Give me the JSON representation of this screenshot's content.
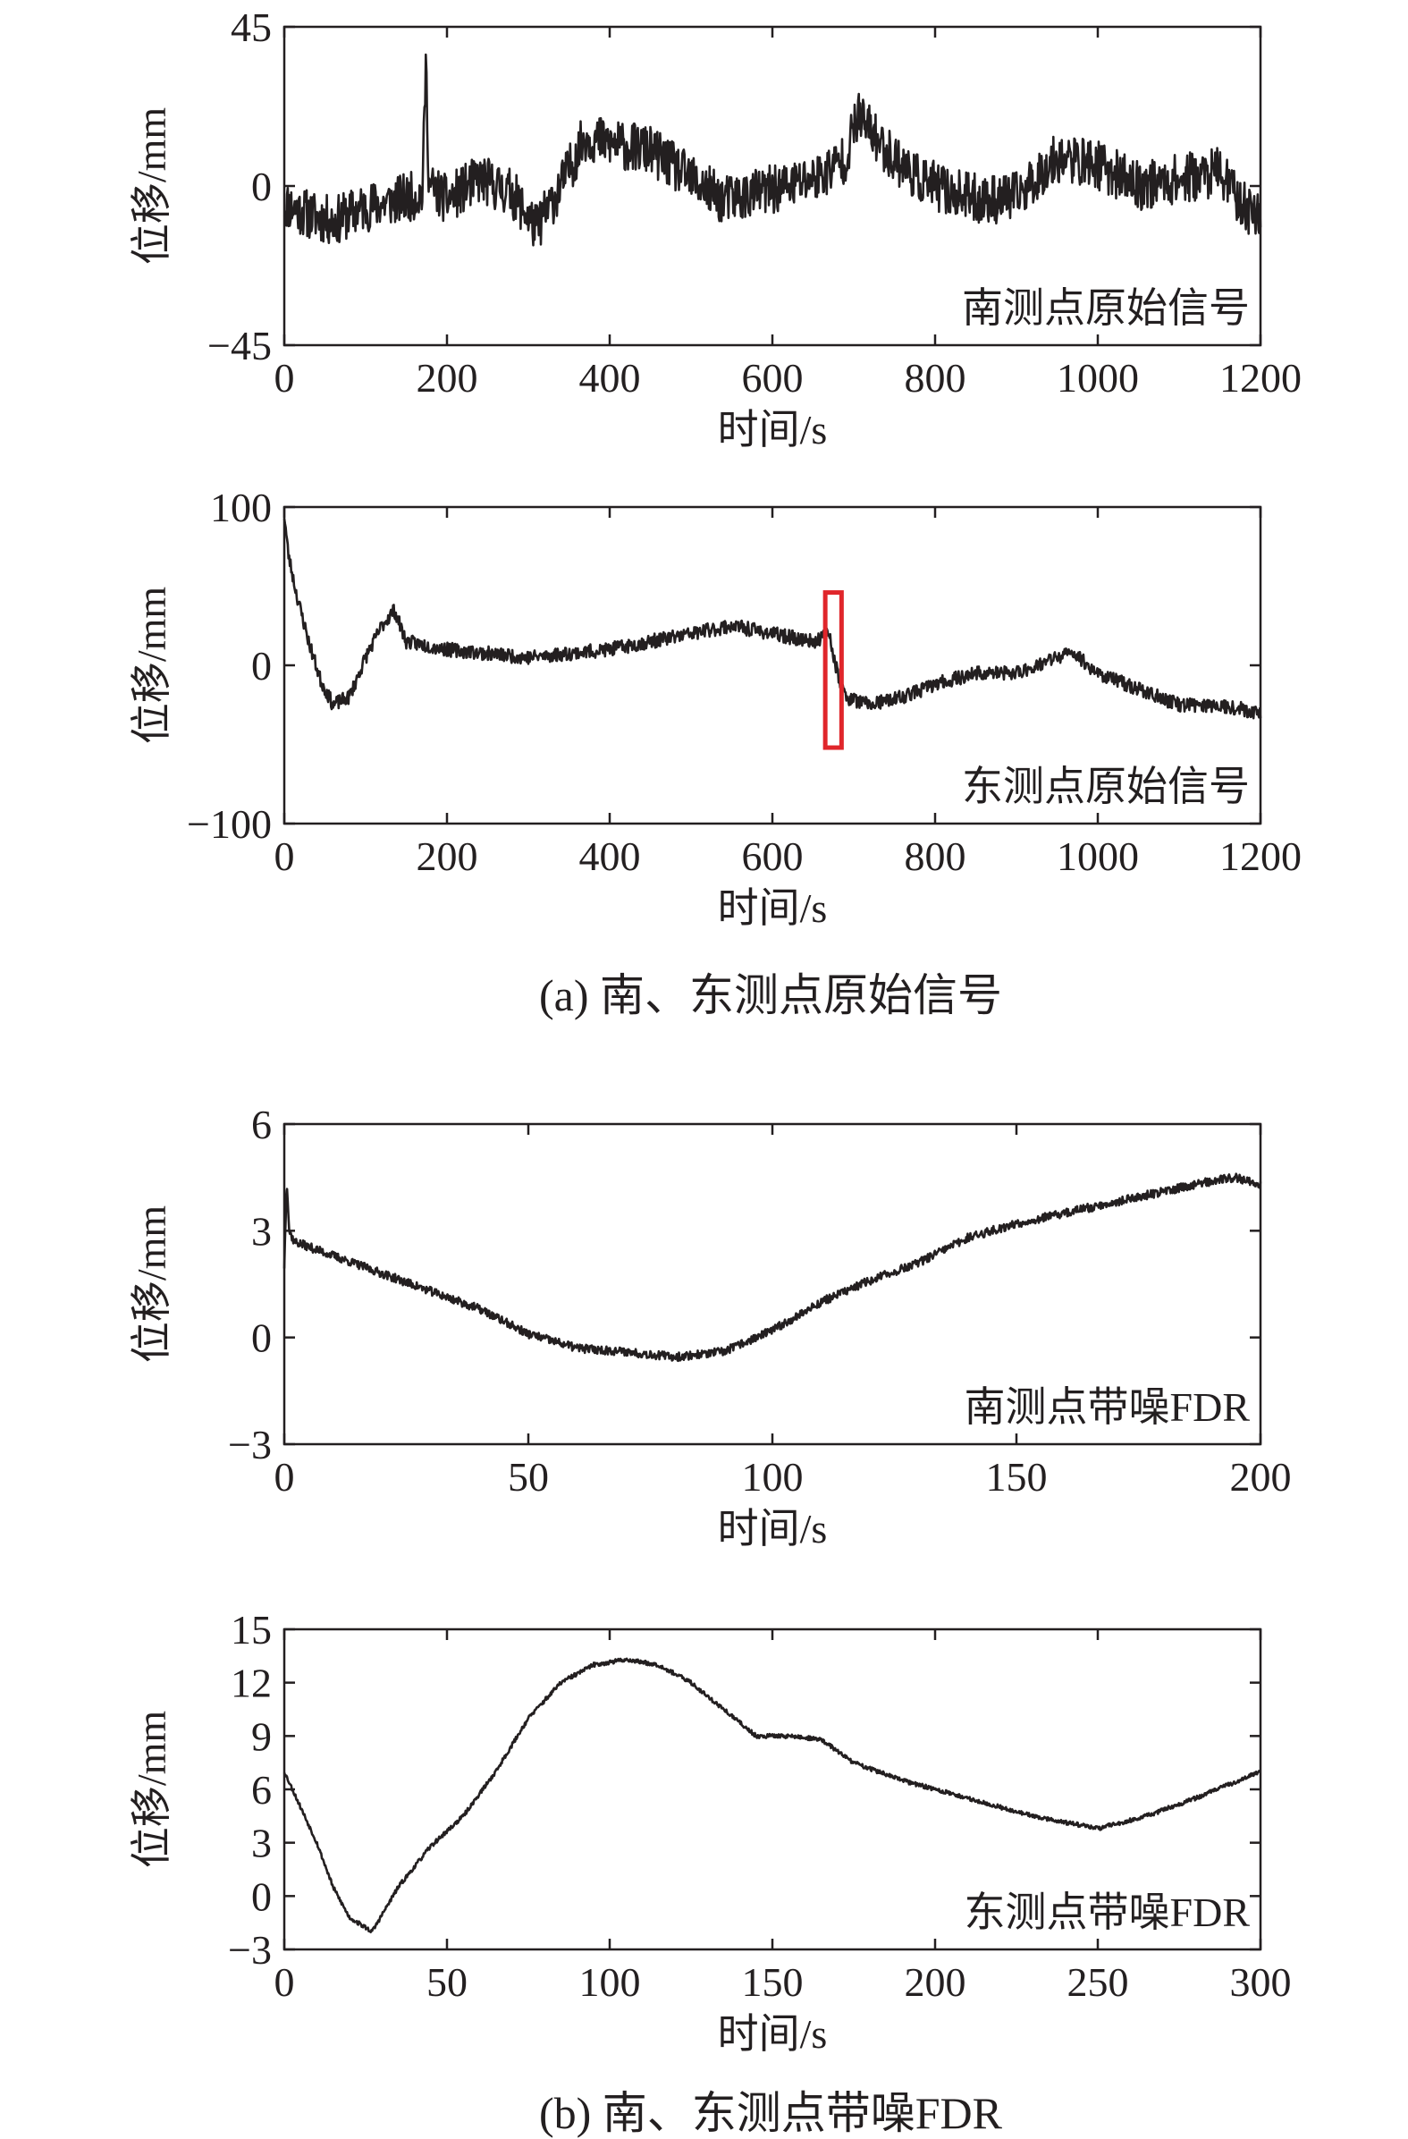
{
  "chart_data": [
    {
      "type": "line",
      "panel": "a-top",
      "title": "",
      "annotation": "南测点原始信号",
      "xlabel": "时间/s",
      "ylabel": "位移/mm",
      "xlim": [
        0,
        1200
      ],
      "ylim": [
        -45,
        45
      ],
      "xticks": [
        0,
        200,
        400,
        600,
        800,
        1000,
        1200
      ],
      "xtick_labels": [
        "0",
        "200",
        "400",
        "600",
        "800",
        "1000",
        "1200"
      ],
      "yticks": [
        -45,
        0,
        45
      ],
      "ytick_labels": [
        "−45",
        "0",
        "45"
      ],
      "noise": 7,
      "seed": 11,
      "series": [
        {
          "name": "南测点原始信号",
          "x": [
            0,
            30,
            60,
            100,
            140,
            170,
            174,
            178,
            200,
            240,
            280,
            310,
            340,
            370,
            400,
            450,
            500,
            540,
            580,
            620,
            660,
            690,
            705,
            740,
            780,
            820,
            860,
            900,
            950,
            1000,
            1050,
            1100,
            1150,
            1180,
            1200
          ],
          "y": [
            -5,
            -8,
            -10,
            -6,
            -4,
            -2,
            35,
            0,
            -4,
            2,
            -2,
            -12,
            0,
            14,
            12,
            10,
            2,
            -4,
            -2,
            0,
            3,
            8,
            20,
            10,
            2,
            -2,
            -4,
            -3,
            8,
            6,
            0,
            2,
            4,
            -6,
            -8
          ]
        }
      ]
    },
    {
      "type": "line",
      "panel": "a-bottom",
      "title": "",
      "annotation": "东测点原始信号",
      "xlabel": "时间/s",
      "ylabel": "位移/mm",
      "xlim": [
        0,
        1200
      ],
      "ylim": [
        -100,
        100
      ],
      "xticks": [
        0,
        200,
        400,
        600,
        800,
        1000,
        1200
      ],
      "xtick_labels": [
        "0",
        "200",
        "400",
        "600",
        "800",
        "1000",
        "1200"
      ],
      "yticks": [
        -100,
        0,
        100
      ],
      "ytick_labels": [
        "−100",
        "0",
        "100"
      ],
      "noise": 4.5,
      "seed": 23,
      "highlight": {
        "x0": 665,
        "x1": 685,
        "y0": -52,
        "y1": 46,
        "color": "#e0262b"
      },
      "series": [
        {
          "name": "东测点原始信号",
          "x": [
            0,
            5,
            15,
            30,
            45,
            60,
            80,
            100,
            120,
            135,
            150,
            200,
            300,
            400,
            450,
            500,
            550,
            600,
            650,
            670,
            680,
            690,
            720,
            760,
            800,
            850,
            900,
            950,
            970,
            1000,
            1050,
            1100,
            1150,
            1200
          ],
          "y": [
            95,
            70,
            45,
            15,
            -10,
            -25,
            -20,
            5,
            25,
            35,
            15,
            10,
            5,
            10,
            15,
            20,
            25,
            20,
            15,
            20,
            -5,
            -20,
            -25,
            -20,
            -12,
            -5,
            -5,
            5,
            8,
            -5,
            -15,
            -25,
            -25,
            -30
          ]
        }
      ]
    },
    {
      "type": "line",
      "panel": "b-top",
      "title": "",
      "annotation": "南测点带噪FDR",
      "xlabel": "时间/s",
      "ylabel": "位移/mm",
      "xlim": [
        0,
        200
      ],
      "ylim": [
        -3,
        6
      ],
      "xticks": [
        0,
        50,
        100,
        150,
        200
      ],
      "xtick_labels": [
        "0",
        "50",
        "100",
        "150",
        "200"
      ],
      "yticks": [
        -3,
        0,
        3,
        6
      ],
      "ytick_labels": [
        "−3",
        "0",
        "3",
        "6"
      ],
      "noise": 0.12,
      "seed": 37,
      "series": [
        {
          "name": "南测点带噪FDR",
          "x": [
            0,
            0.5,
            1,
            2,
            10,
            20,
            30,
            40,
            50,
            60,
            70,
            80,
            90,
            100,
            110,
            120,
            130,
            140,
            150,
            160,
            170,
            180,
            190,
            195,
            200
          ],
          "y": [
            2.0,
            4.5,
            3.0,
            2.7,
            2.3,
            1.8,
            1.3,
            0.8,
            0.1,
            -0.3,
            -0.4,
            -0.55,
            -0.4,
            0.2,
            1.0,
            1.6,
            2.1,
            2.8,
            3.2,
            3.5,
            3.8,
            4.1,
            4.4,
            4.5,
            4.3
          ]
        }
      ]
    },
    {
      "type": "line",
      "panel": "b-bottom",
      "title": "",
      "annotation": "东测点带噪FDR",
      "xlabel": "时间/s",
      "ylabel": "位移/mm",
      "xlim": [
        0,
        300
      ],
      "ylim": [
        -3,
        15
      ],
      "xticks": [
        0,
        50,
        100,
        150,
        200,
        250,
        300
      ],
      "xtick_labels": [
        "0",
        "50",
        "100",
        "150",
        "200",
        "250",
        "300"
      ],
      "yticks": [
        -3,
        0,
        3,
        6,
        9,
        12,
        15
      ],
      "ytick_labels": [
        "−3",
        "0",
        "3",
        "6",
        "9",
        "12",
        "15"
      ],
      "noise": 0.12,
      "seed": 53,
      "series": [
        {
          "name": "东测点带噪FDR",
          "x": [
            0,
            5,
            10,
            15,
            20,
            27,
            35,
            45,
            55,
            65,
            75,
            85,
            95,
            105,
            115,
            125,
            135,
            145,
            155,
            165,
            175,
            190,
            210,
            230,
            250,
            265,
            280,
            300
          ],
          "y": [
            7,
            5,
            3,
            0.5,
            -1.2,
            -2.0,
            0.5,
            2.8,
            4.5,
            7.0,
            10.0,
            12.0,
            13.0,
            13.3,
            13.0,
            12.0,
            10.5,
            9.0,
            9.0,
            8.8,
            7.5,
            6.5,
            5.5,
            4.5,
            3.8,
            4.5,
            5.5,
            7.0
          ]
        }
      ]
    }
  ],
  "captions": {
    "a": "(a) 南、东测点原始信号",
    "b": "(b) 南、东测点带噪FDR"
  }
}
